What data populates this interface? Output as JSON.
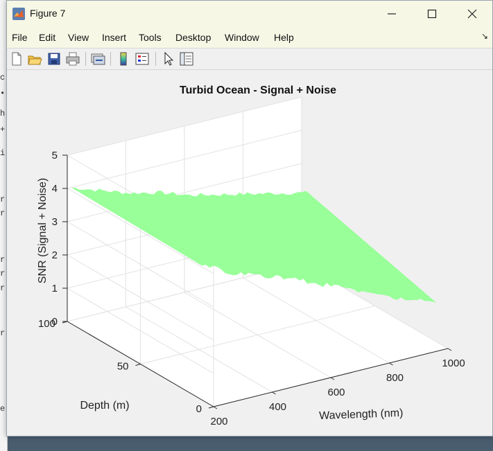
{
  "window": {
    "title": "Figure 7",
    "controls": [
      "minimize",
      "maximize",
      "close"
    ]
  },
  "menu": [
    "File",
    "Edit",
    "View",
    "Insert",
    "Tools",
    "Desktop",
    "Window",
    "Help"
  ],
  "toolbar": [
    {
      "name": "new-figure-icon"
    },
    {
      "name": "open-file-icon"
    },
    {
      "name": "save-icon"
    },
    {
      "name": "print-icon"
    },
    {
      "name": "link-plot-icon"
    },
    {
      "name": "colorbar-icon"
    },
    {
      "name": "legend-icon"
    },
    {
      "name": "edit-plot-icon"
    },
    {
      "name": "property-inspector-icon"
    }
  ],
  "colors": {
    "surface": "#99ff99",
    "titlebar": "#f7f7e6",
    "axes_bg": "#ffffff"
  },
  "chart_data": {
    "type": "surface",
    "title": "Turbid Ocean - Signal + Noise",
    "xlabel": "Wavelength (nm)",
    "ylabel": "Depth (m)",
    "zlabel": "SNR (Signal + Noise)",
    "xlim": [
      200,
      1000
    ],
    "ylim": [
      0,
      100
    ],
    "zlim": [
      0,
      5
    ],
    "xticks": [
      200,
      400,
      600,
      800,
      1000
    ],
    "yticks": [
      0,
      50,
      100
    ],
    "zticks": [
      0,
      1,
      2,
      3,
      4,
      5
    ],
    "grid": true,
    "surface_color": "#99ff99",
    "profile": {
      "x": [
        200,
        300,
        400,
        500,
        600,
        700,
        800,
        900,
        1000
      ],
      "z_shallow": [
        4.1,
        3.6,
        3.3,
        3.0,
        2.6,
        2.3,
        1.8,
        1.5,
        1.2
      ],
      "z_deep": [
        4.1,
        3.8,
        3.5,
        3.3,
        3.0,
        2.8,
        2.6,
        2.4,
        2.2
      ]
    }
  }
}
